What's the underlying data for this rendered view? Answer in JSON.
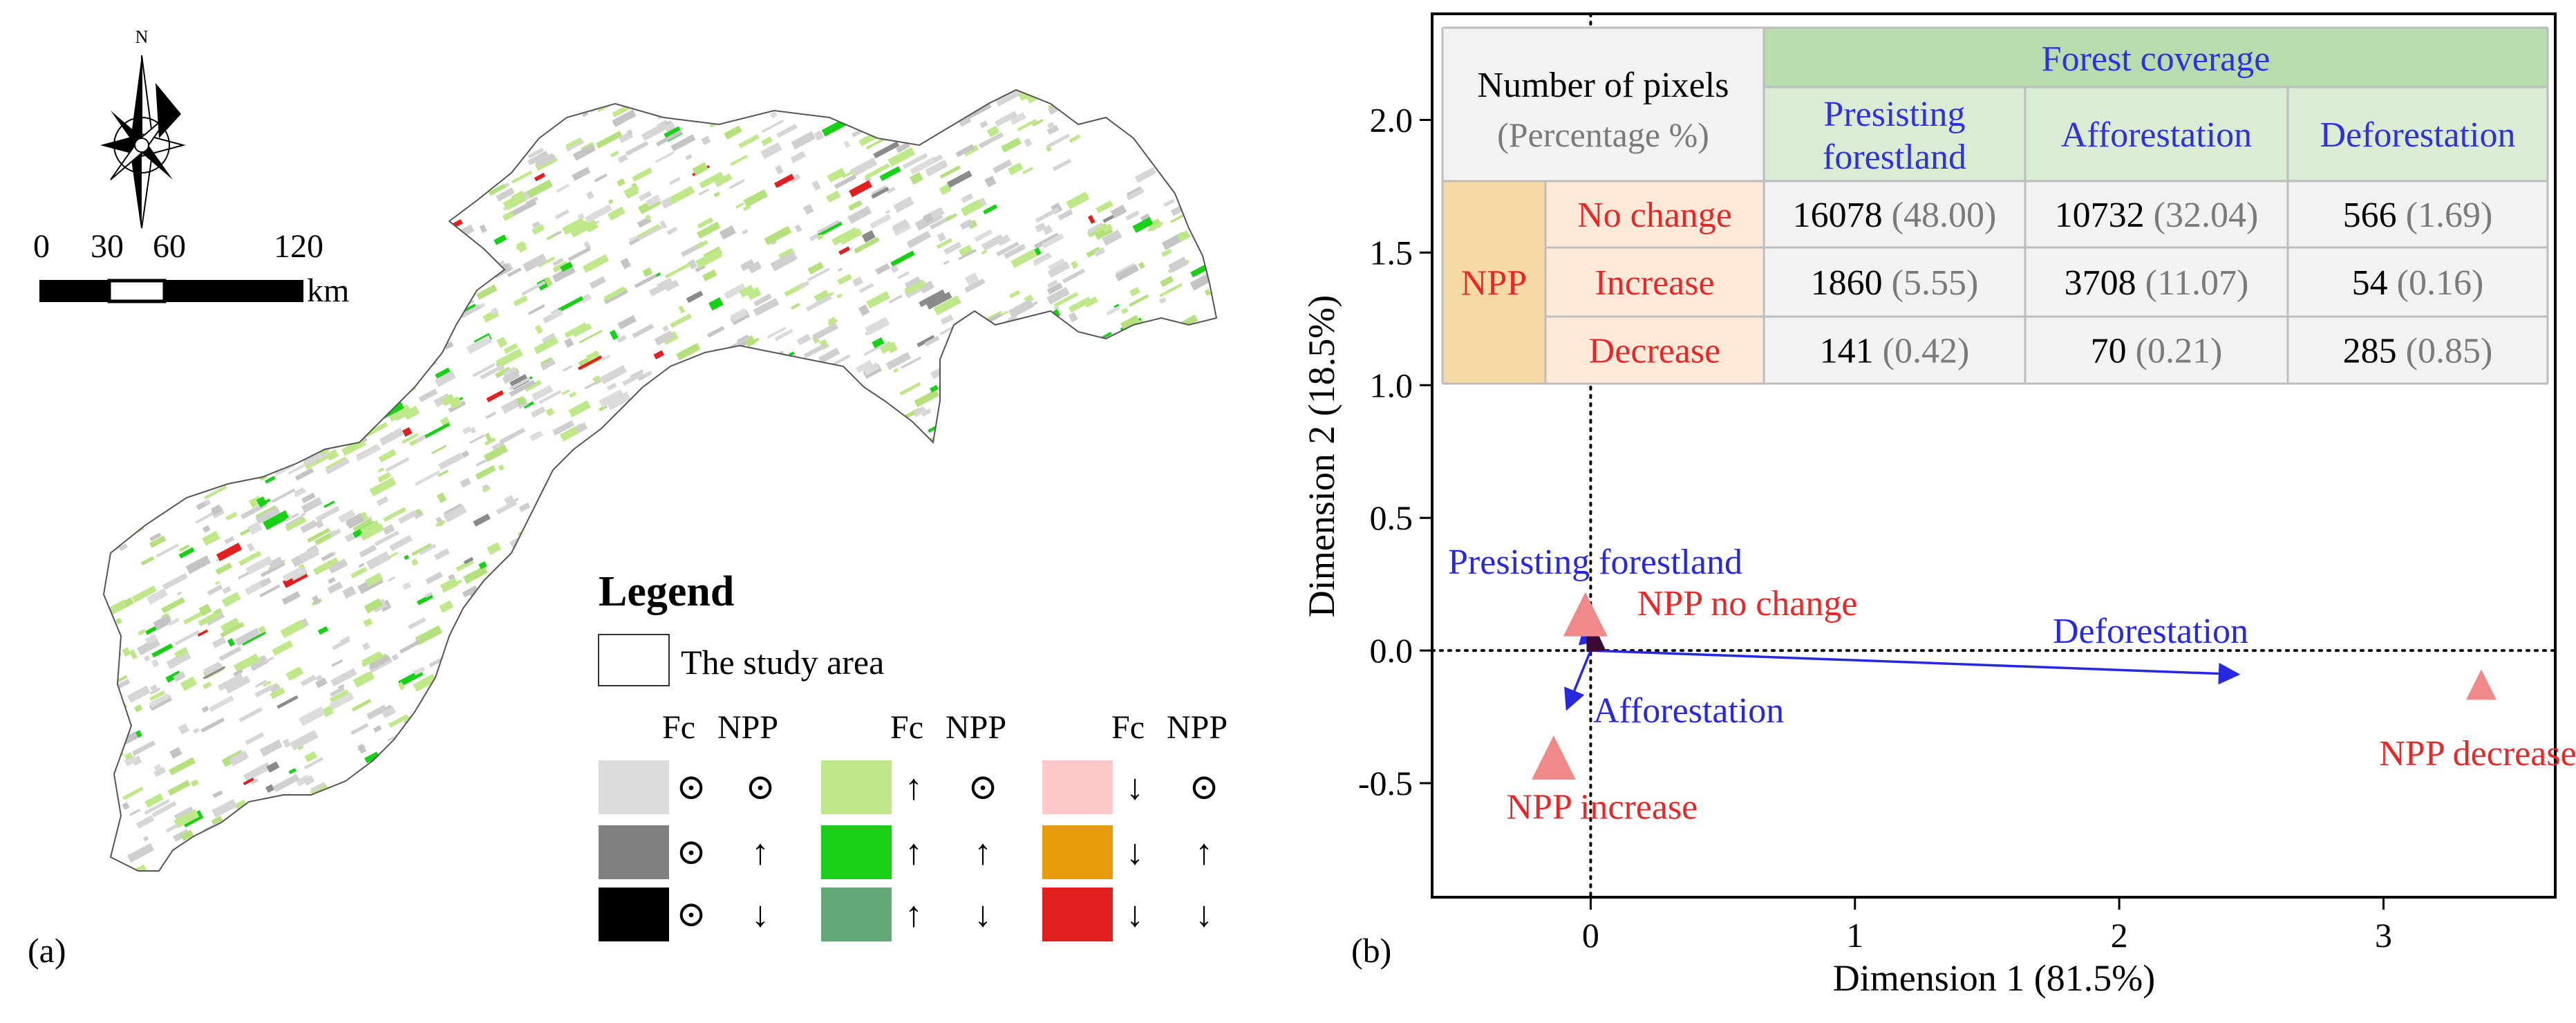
{
  "panel_a": {
    "label": "(a)",
    "north_label": "N",
    "scale_ticks": [
      "0",
      "30",
      "60",
      "120"
    ],
    "scale_unit": "km",
    "legend": {
      "title": "Legend",
      "study_area_label": "The study area",
      "header_fc": "Fc",
      "header_npp": "NPP",
      "entries": [
        {
          "color": "#dcdcdc",
          "fc": "⊙",
          "npp": "⊙"
        },
        {
          "color": "#808080",
          "fc": "⊙",
          "npp": "↑"
        },
        {
          "color": "#000000",
          "fc": "⊙",
          "npp": "↓"
        },
        {
          "color": "#bfe88a",
          "fc": "↑",
          "npp": "⊙"
        },
        {
          "color": "#18d018",
          "fc": "↑",
          "npp": "↑"
        },
        {
          "color": "#64a878",
          "fc": "↑",
          "npp": "↓"
        },
        {
          "color": "#ffc8c8",
          "fc": "↓",
          "npp": "⊙"
        },
        {
          "color": "#e89c0c",
          "fc": "↓",
          "npp": "↑"
        },
        {
          "color": "#e02020",
          "fc": "↓",
          "npp": "↓"
        }
      ]
    }
  },
  "chart_data": {
    "type": "scatter",
    "panel_label": "(b)",
    "xlabel": "Dimension 1  (81.5%)",
    "ylabel": "Dimension 2  (18.5%)",
    "xlim": [
      -0.6,
      3.65
    ],
    "ylim": [
      -0.93,
      2.4
    ],
    "xticks": [
      0,
      1,
      2,
      3
    ],
    "yticks": [
      -0.5,
      0.0,
      0.5,
      1.0,
      1.5,
      2.0
    ],
    "xtick_labels": [
      "0",
      "1",
      "2",
      "3"
    ],
    "ytick_labels": [
      "-0.5",
      "0.0",
      "0.5",
      "1.0",
      "1.5",
      "2.0"
    ],
    "reference_lines": {
      "x": 0,
      "y": 0,
      "style": "dotted"
    },
    "row_points": [
      {
        "label": "NPP no change",
        "x": -0.02,
        "y": 0.12,
        "color": "#f08a8a"
      },
      {
        "label": "NPP increase",
        "x": -0.14,
        "y": -0.42,
        "color": "#f08a8a"
      },
      {
        "label": "NPP decrease",
        "x": 3.37,
        "y": -0.14,
        "color": "#f08a8a"
      }
    ],
    "column_arrows": [
      {
        "label": "Presisting forestland",
        "x": -0.02,
        "y": 0.1,
        "color": "#2828e0"
      },
      {
        "label": "Afforestation",
        "x": -0.09,
        "y": -0.22,
        "color": "#2828e0"
      },
      {
        "label": "Deforestation",
        "x": 2.45,
        "y": -0.09,
        "color": "#2828e0"
      }
    ],
    "table": {
      "corner_line1": "Number of  pixels",
      "corner_line2": "(Percentage %)",
      "group_header": "Forest coverage",
      "col_headers": [
        [
          "Presisting",
          "forestland"
        ],
        [
          "Afforestation"
        ],
        [
          "Deforestation"
        ]
      ],
      "row_group": "NPP",
      "rows": [
        {
          "label": "No change",
          "cells": [
            [
              "16078",
              "(48.00)"
            ],
            [
              "10732",
              "(32.04)"
            ],
            [
              "566",
              "(1.69)"
            ]
          ]
        },
        {
          "label": "Increase",
          "cells": [
            [
              "1860",
              "(5.55)"
            ],
            [
              "3708",
              "(11.07)"
            ],
            [
              "54",
              "(0.16)"
            ]
          ]
        },
        {
          "label": "Decrease",
          "cells": [
            [
              "141",
              "(0.42)"
            ],
            [
              "70",
              "(0.21)"
            ],
            [
              "285",
              "(0.85)"
            ]
          ]
        }
      ]
    }
  }
}
